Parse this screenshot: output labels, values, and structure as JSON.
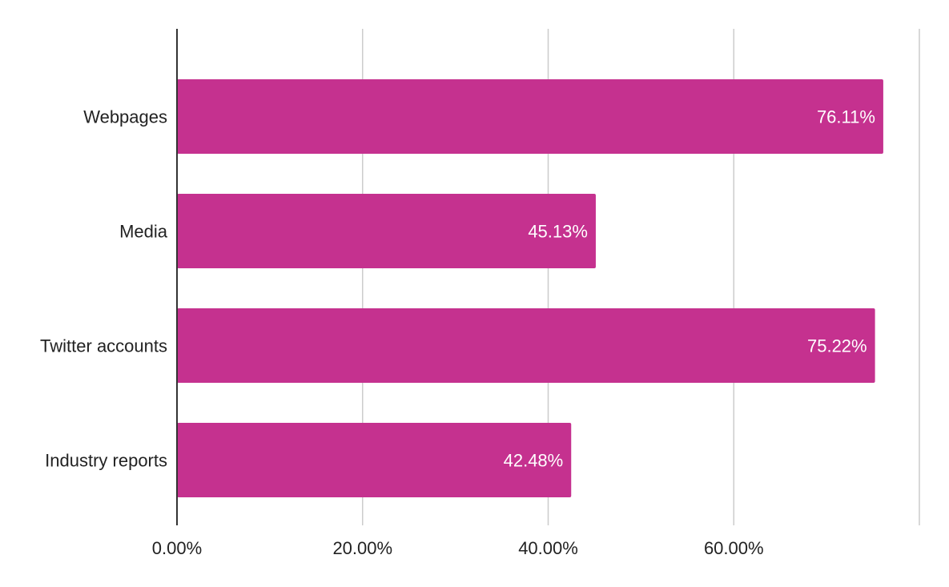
{
  "chart_data": {
    "type": "bar",
    "orientation": "horizontal",
    "categories": [
      "Webpages",
      "Media",
      "Twitter accounts",
      "Industry reports"
    ],
    "values": [
      76.11,
      45.13,
      75.22,
      42.48
    ],
    "data_labels": [
      "76.11%",
      "45.13%",
      "75.22%",
      "42.48%"
    ],
    "xlim": [
      0,
      80
    ],
    "x_ticks": [
      0,
      20,
      40,
      60,
      80
    ],
    "x_tick_labels": [
      "0.00%",
      "20.00%",
      "40.00%",
      "60.00%",
      ""
    ],
    "title": "",
    "xlabel": "",
    "ylabel": "",
    "grid": true,
    "legend": "none",
    "bar_color": "#c5318f",
    "grid_color": "#cccccc",
    "axis_color": "#333333"
  }
}
